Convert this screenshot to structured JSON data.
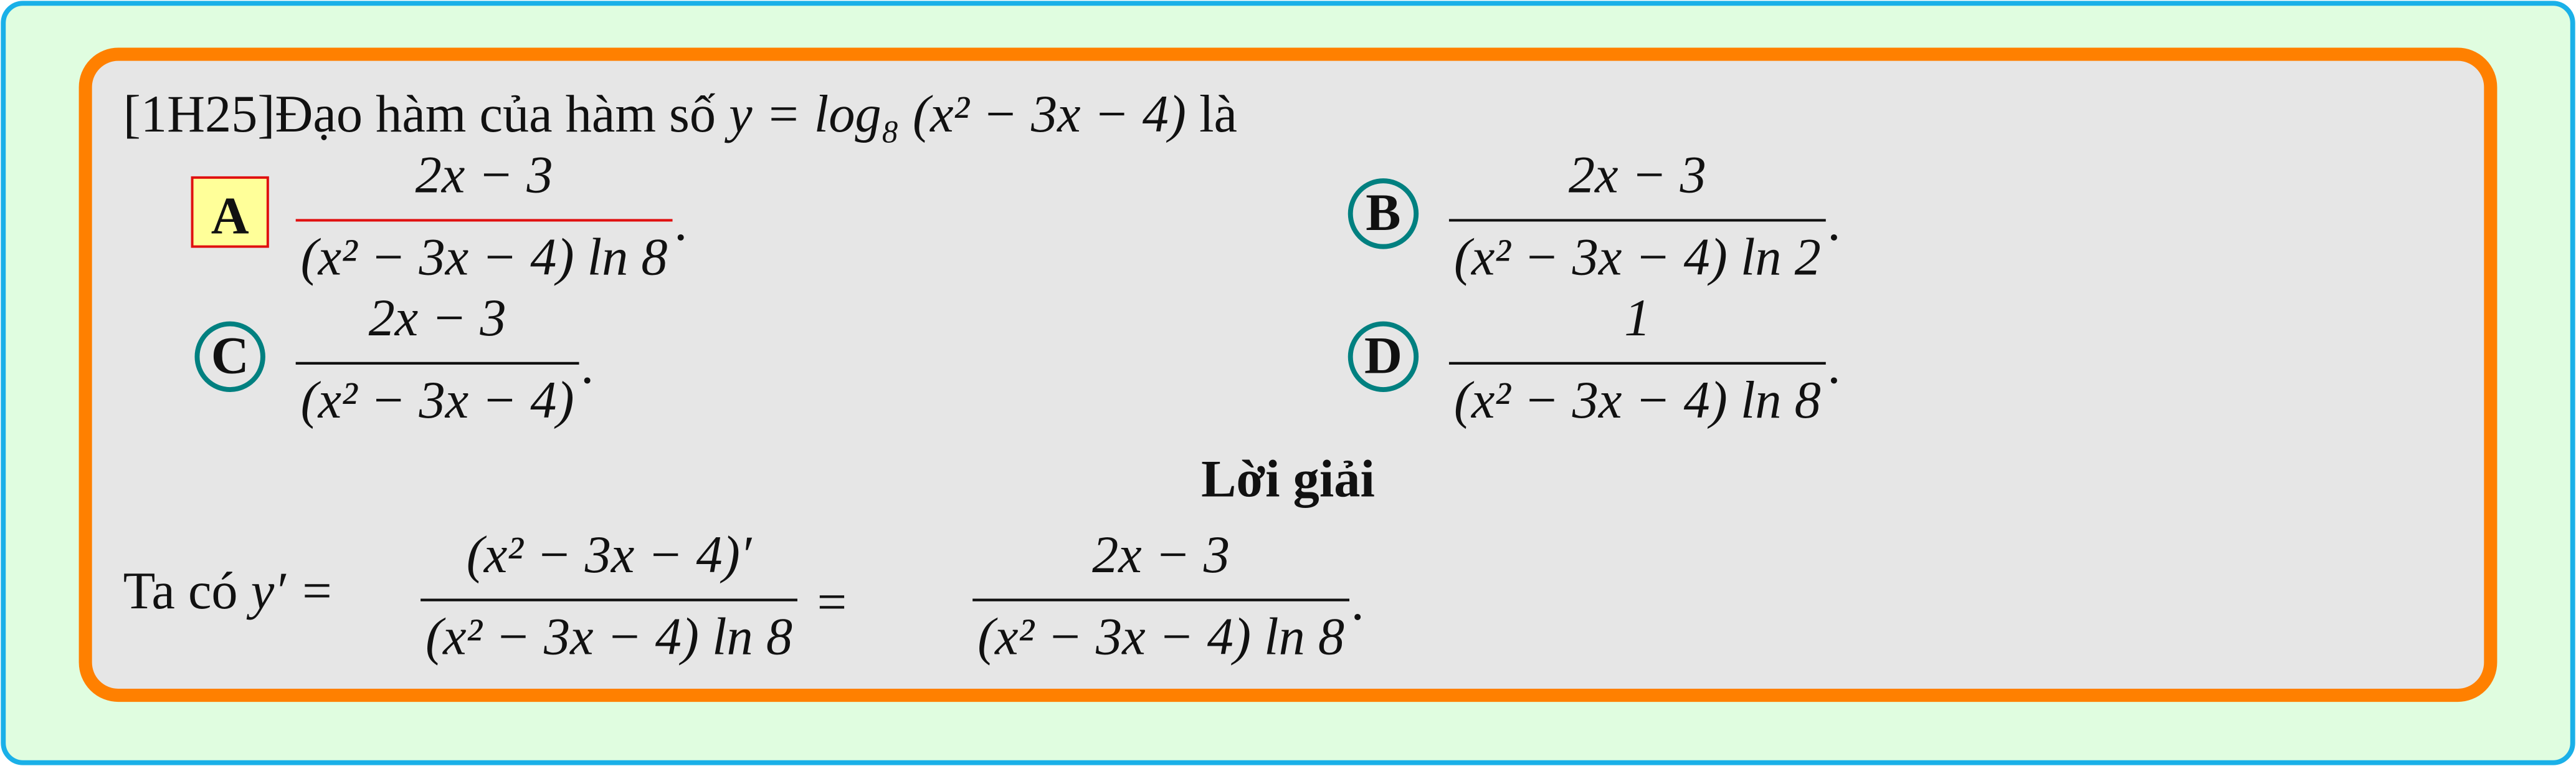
{
  "question": {
    "tag": "[1H25]",
    "text": "Đạo hàm của hàm số ",
    "formula": "y = log₈ (x² − 3x − 4)",
    "end": " là"
  },
  "options": [
    {
      "letter": "A",
      "numerator": "2x − 3",
      "denominator": "(x² − 3x − 4) ln 8",
      "end": ".",
      "correct": true
    },
    {
      "letter": "B",
      "numerator": "2x − 3",
      "denominator": "(x² − 3x − 4) ln 2",
      "end": ".",
      "correct": false
    },
    {
      "letter": "C",
      "numerator": "2x − 3",
      "denominator": "(x² − 3x − 4)",
      "end": ".",
      "correct": false
    },
    {
      "letter": "D",
      "numerator": "1",
      "denominator": "(x² − 3x − 4) ln 8",
      "end": ".",
      "correct": false
    }
  ],
  "solution": {
    "title": "Lời giải",
    "lead": "Ta có ",
    "lhs": "y′ =",
    "fraction_1": {
      "numerator": "(x² − 3x − 4)′",
      "denominator": "(x² − 3x − 4) ln 8"
    },
    "equals": "=",
    "fraction_2": {
      "numerator": "2x − 3",
      "denominator": "(x² − 3x − 4) ln 8"
    },
    "end": "."
  }
}
